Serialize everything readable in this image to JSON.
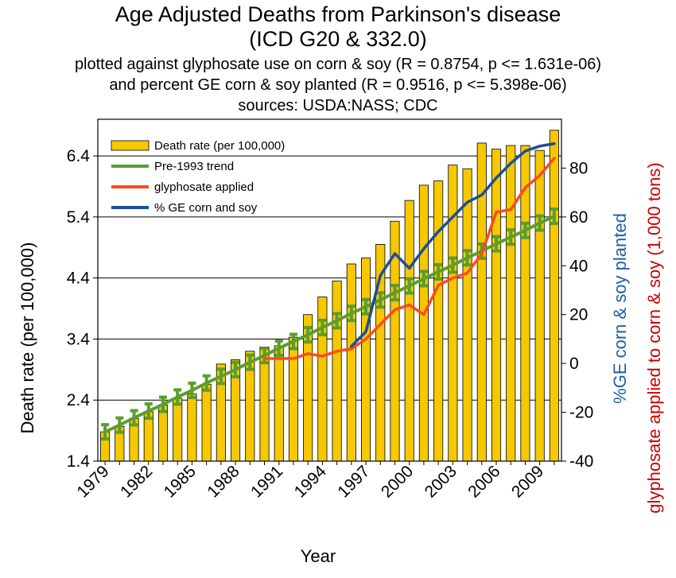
{
  "chart_data": {
    "type": "bar",
    "title": "Age Adjusted Deaths from Parkinson's disease",
    "title_line2": "(ICD G20 & 332.0)",
    "subtitle": [
      "plotted against glyphosate use on corn & soy (R = 0.8754, p <= 1.631e-06)",
      "and percent GE corn & soy planted (R = 0.9516, p <= 5.398e-06)",
      "sources: USDA:NASS; CDC"
    ],
    "xlabel": "Year",
    "ylabel": "Death rate (per 100,000)",
    "y2label": "%GE corn & soy planted",
    "y3label": "glyphosate applied to corn & soy (1,000 tons)",
    "x": [
      1979,
      1980,
      1981,
      1982,
      1983,
      1984,
      1985,
      1986,
      1987,
      1988,
      1989,
      1990,
      1991,
      1992,
      1993,
      1994,
      1995,
      1996,
      1997,
      1998,
      1999,
      2000,
      2001,
      2002,
      2003,
      2004,
      2005,
      2006,
      2007,
      2008,
      2009,
      2010
    ],
    "x_tick_labels": [
      "1979",
      "1982",
      "1985",
      "1988",
      "1991",
      "1994",
      "1997",
      "2000",
      "2003",
      "2006",
      "2009"
    ],
    "ylim": [
      1.4,
      7.0
    ],
    "y_ticks": [
      "1.4",
      "2.4",
      "3.4",
      "4.4",
      "5.4",
      "6.4"
    ],
    "y2lim": [
      -40,
      100
    ],
    "y2_ticks": [
      "-40",
      "-20",
      "0",
      "20",
      "40",
      "60",
      "80"
    ],
    "grid": "horizontal",
    "legend_position": "top-left",
    "colors": {
      "bars": "#f5c800",
      "bar_edge": "#000000",
      "trend": "#5a9e2e",
      "glyphosate": "#ff4b19",
      "ge": "#1f4e96",
      "y2label": "#1f5fa5",
      "y3label": "#cc0000"
    },
    "series": [
      {
        "name": "Death rate (per 100,000)",
        "kind": "bar",
        "axis": "left",
        "values": [
          1.88,
          1.97,
          2.1,
          2.21,
          2.32,
          2.43,
          2.5,
          2.66,
          2.99,
          3.06,
          3.2,
          3.27,
          3.29,
          3.43,
          3.8,
          4.09,
          4.35,
          4.63,
          4.73,
          4.95,
          5.33,
          5.67,
          5.92,
          5.99,
          6.25,
          6.19,
          6.61,
          6.51,
          6.57,
          6.57,
          6.49,
          6.82
        ]
      },
      {
        "name": "Pre-1993 trend",
        "kind": "line-markers",
        "axis": "left",
        "values": [
          1.88,
          1.99,
          2.11,
          2.22,
          2.33,
          2.45,
          2.56,
          2.68,
          2.79,
          2.9,
          3.02,
          3.13,
          3.25,
          3.36,
          3.47,
          3.59,
          3.7,
          3.82,
          3.93,
          4.04,
          4.16,
          4.27,
          4.39,
          4.5,
          4.61,
          4.73,
          4.84,
          4.96,
          5.07,
          5.18,
          5.3,
          5.41
        ]
      },
      {
        "name": "glyphosate applied",
        "kind": "line",
        "axis": "right",
        "x": [
          1990,
          1991,
          1992,
          1993,
          1994,
          1995,
          1996,
          1997,
          1998,
          1999,
          2000,
          2001,
          2002,
          2003,
          2004,
          2005,
          2006,
          2007,
          2008,
          2009,
          2010
        ],
        "values": [
          2,
          2,
          2,
          4,
          3,
          5,
          6,
          10,
          16,
          22,
          24,
          20,
          32,
          35,
          37,
          45,
          62,
          63,
          72,
          77,
          84
        ]
      },
      {
        "name": "% GE corn and soy",
        "kind": "line",
        "axis": "right",
        "x": [
          1996,
          1997,
          1998,
          1999,
          2000,
          2001,
          2002,
          2003,
          2004,
          2005,
          2006,
          2007,
          2008,
          2009,
          2010
        ],
        "values": [
          7,
          13,
          36,
          45,
          39,
          47,
          54,
          60,
          66,
          69,
          76,
          82,
          87,
          89,
          90
        ]
      }
    ]
  }
}
